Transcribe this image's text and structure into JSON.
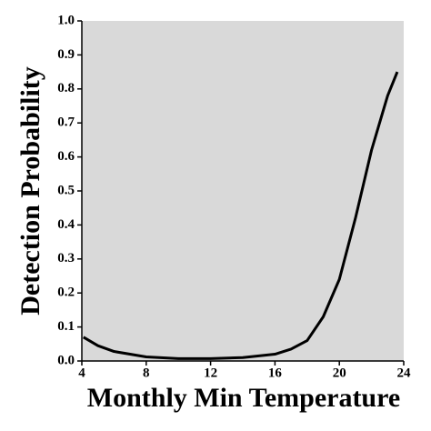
{
  "chart_data": {
    "type": "line",
    "x_label": "Monthly Min Temperature",
    "y_label": "Detection Probability",
    "x": [
      4.1,
      5,
      6,
      8,
      10,
      12,
      14,
      16,
      17,
      18,
      19,
      20,
      21,
      22,
      23,
      23.6
    ],
    "series": [
      {
        "name": "Detection",
        "color": "#000000",
        "values": [
          0.07,
          0.045,
          0.028,
          0.012,
          0.007,
          0.007,
          0.01,
          0.02,
          0.035,
          0.06,
          0.13,
          0.24,
          0.42,
          0.62,
          0.78,
          0.85
        ]
      }
    ],
    "xlim": [
      4,
      24
    ],
    "xticks": [
      4,
      8,
      12,
      16,
      20,
      24
    ],
    "ylim": [
      0,
      1
    ],
    "yticks": [
      {
        "value": 0,
        "label": "0.0"
      },
      {
        "value": 0.1,
        "label": "0.1"
      },
      {
        "value": 0.2,
        "label": "0.2"
      },
      {
        "value": 0.3,
        "label": "0.3"
      },
      {
        "value": 0.4,
        "label": "0.4"
      },
      {
        "value": 0.5,
        "label": "0.5"
      },
      {
        "value": 0.6,
        "label": "0.6"
      },
      {
        "value": 0.7,
        "label": "0.7"
      },
      {
        "value": 0.8,
        "label": "0.8"
      },
      {
        "value": 0.9,
        "label": "0.9"
      },
      {
        "value": 1,
        "label": "1.0"
      }
    ],
    "background": "#d9d9d9"
  }
}
